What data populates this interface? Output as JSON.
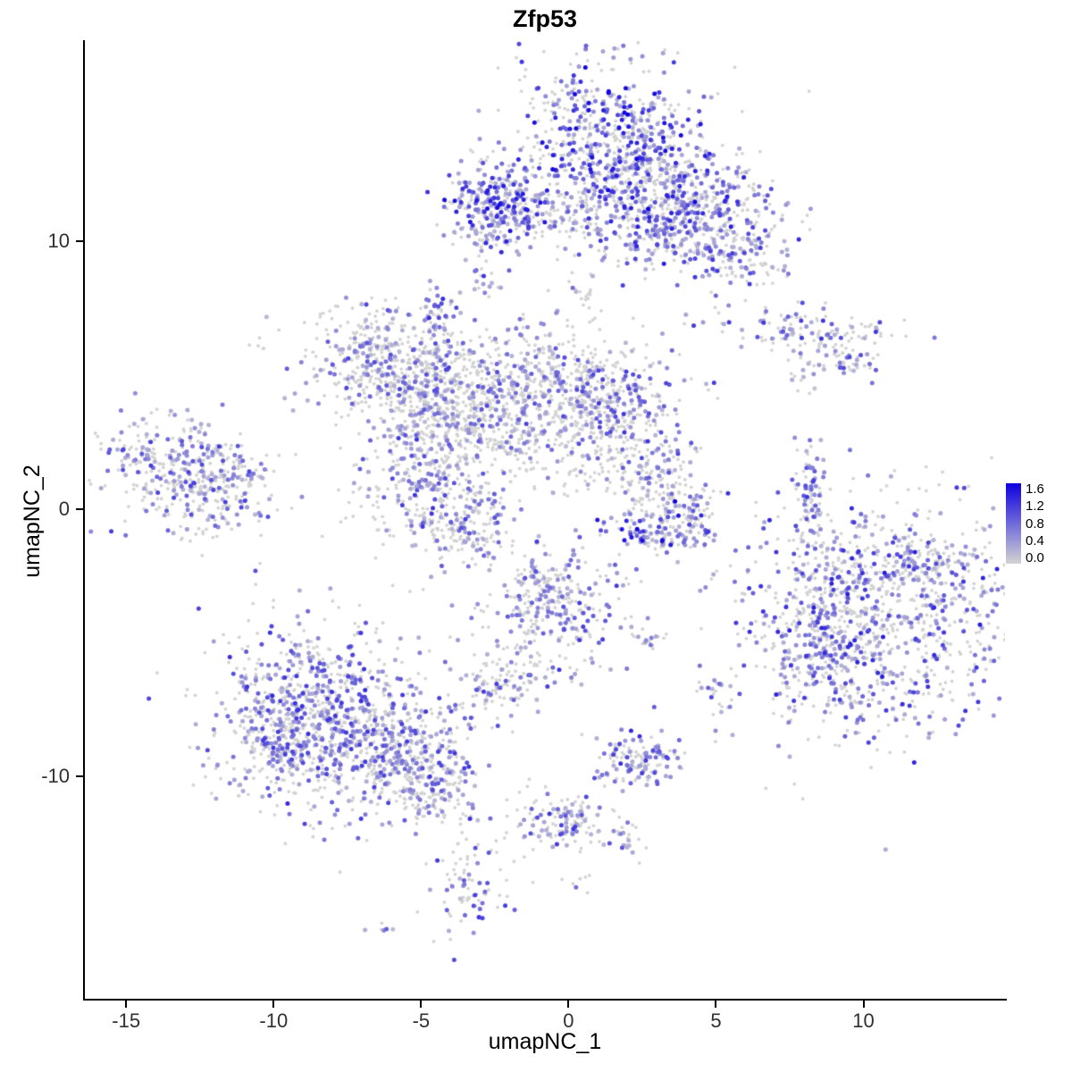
{
  "title": "Zfp53",
  "axes": {
    "xlabel": "umapNC_1",
    "ylabel": "umapNC_2",
    "x_ticks": [
      -15,
      -10,
      -5,
      0,
      5,
      10
    ],
    "y_ticks": [
      -10,
      0,
      10
    ]
  },
  "legend": {
    "labels": [
      "1.6",
      "1.2",
      "0.8",
      "0.4",
      "0.0"
    ],
    "vmin": 0.0,
    "vmax": 1.6,
    "min_color": "#D3D3D3",
    "max_color": "#0D00E0"
  },
  "style": {
    "background": "#FFFFFF",
    "axis_color": "#000000",
    "zero_point_color": "#D3D3D3"
  },
  "chart_data": {
    "type": "scatter",
    "title": "Zfp53",
    "xlabel": "umapNC_1",
    "ylabel": "umapNC_2",
    "xlim": [
      -16.4,
      14.8
    ],
    "ylim": [
      -18.3,
      17.5
    ],
    "grid": false,
    "legend_position": "right",
    "color_scale": {
      "vmin": 0.0,
      "vmax": 1.6,
      "low": "#D3D3D3",
      "high": "#0D00E0"
    },
    "seed": 42,
    "clusters": [
      {
        "name": "top-main-a",
        "cx": 1.3,
        "cy": 14.0,
        "sx": 1.6,
        "sy": 1.5,
        "n": 500,
        "frac": 0.55,
        "vmax": 1.6
      },
      {
        "name": "top-main-b",
        "cx": 2.5,
        "cy": 12.0,
        "sx": 1.5,
        "sy": 1.4,
        "n": 420,
        "frac": 0.45,
        "vmax": 1.4
      },
      {
        "name": "top-arm-right",
        "cx": 4.6,
        "cy": 11.3,
        "sx": 1.3,
        "sy": 0.8,
        "n": 260,
        "frac": 0.5,
        "vmax": 1.3
      },
      {
        "name": "top-arm-tip",
        "cx": 5.6,
        "cy": 9.6,
        "sx": 0.9,
        "sy": 0.7,
        "n": 150,
        "frac": 0.45,
        "vmax": 1.2
      },
      {
        "name": "top-left-blob",
        "cx": -2.5,
        "cy": 11.4,
        "sx": 0.75,
        "sy": 0.85,
        "n": 280,
        "frac": 0.6,
        "vmax": 1.5
      },
      {
        "name": "top-bridge",
        "cx": -0.6,
        "cy": 10.9,
        "sx": 1.2,
        "sy": 0.5,
        "n": 120,
        "frac": 0.35,
        "vmax": 1.0
      },
      {
        "name": "top-clump",
        "cx": 3.2,
        "cy": 10.1,
        "sx": 0.45,
        "sy": 0.45,
        "n": 70,
        "frac": 0.5,
        "vmax": 1.2
      },
      {
        "name": "top-spur-down",
        "cx": 0.6,
        "cy": 7.6,
        "sx": 0.35,
        "sy": 1.0,
        "n": 25,
        "frac": 0.2,
        "vmax": 0.8
      },
      {
        "name": "spot-upper-mid",
        "cx": -2.8,
        "cy": 8.6,
        "sx": 0.28,
        "sy": 0.38,
        "n": 20,
        "frac": 0.5,
        "vmax": 1.2
      },
      {
        "name": "right-stripe-1",
        "cx": 8.2,
        "cy": 6.7,
        "sx": 1.6,
        "sy": 0.38,
        "n": 120,
        "frac": 0.45,
        "vmax": 1.2
      },
      {
        "name": "right-stripe-2",
        "cx": 9.2,
        "cy": 5.6,
        "sx": 0.8,
        "sy": 0.3,
        "n": 60,
        "frac": 0.4,
        "vmax": 1.1
      },
      {
        "name": "right-stripe-dot",
        "cx": 7.8,
        "cy": 4.8,
        "sx": 0.25,
        "sy": 0.25,
        "n": 8,
        "frac": 0.25,
        "vmax": 0.6
      },
      {
        "name": "mid-a",
        "cx": -6.6,
        "cy": 5.6,
        "sx": 1.1,
        "sy": 1.0,
        "n": 300,
        "frac": 0.4,
        "vmax": 1.1
      },
      {
        "name": "mid-b",
        "cx": -5.0,
        "cy": 4.4,
        "sx": 1.2,
        "sy": 1.1,
        "n": 320,
        "frac": 0.3,
        "vmax": 1.0
      },
      {
        "name": "mid-c",
        "cx": -2.9,
        "cy": 3.6,
        "sx": 1.4,
        "sy": 1.2,
        "n": 380,
        "frac": 0.3,
        "vmax": 1.0
      },
      {
        "name": "mid-d",
        "cx": -0.5,
        "cy": 4.8,
        "sx": 1.4,
        "sy": 1.2,
        "n": 350,
        "frac": 0.4,
        "vmax": 1.1
      },
      {
        "name": "mid-e",
        "cx": 1.7,
        "cy": 3.9,
        "sx": 1.2,
        "sy": 1.0,
        "n": 300,
        "frac": 0.4,
        "vmax": 1.2
      },
      {
        "name": "mid-spur-up",
        "cx": -4.5,
        "cy": 6.9,
        "sx": 0.28,
        "sy": 0.85,
        "n": 60,
        "frac": 0.6,
        "vmax": 1.3
      },
      {
        "name": "mid-lower",
        "cx": -4.6,
        "cy": 0.8,
        "sx": 1.25,
        "sy": 1.3,
        "n": 330,
        "frac": 0.4,
        "vmax": 1.2
      },
      {
        "name": "mid-lower-tail",
        "cx": -3.3,
        "cy": -0.8,
        "sx": 0.8,
        "sy": 0.7,
        "n": 120,
        "frac": 0.4,
        "vmax": 1.1
      },
      {
        "name": "mid-bridge",
        "cx": -1.2,
        "cy": 2.4,
        "sx": 1.5,
        "sy": 0.45,
        "n": 80,
        "frac": 0.2,
        "vmax": 0.8
      },
      {
        "name": "mid-strand-right",
        "cx": 0.8,
        "cy": 1.2,
        "sx": 1.2,
        "sy": 0.4,
        "n": 40,
        "frac": 0.15,
        "vmax": 0.7
      },
      {
        "name": "far-left-a",
        "cx": -13.4,
        "cy": 1.6,
        "sx": 1.3,
        "sy": 1.0,
        "n": 260,
        "frac": 0.45,
        "vmax": 1.2
      },
      {
        "name": "far-left-b",
        "cx": -12.1,
        "cy": 0.4,
        "sx": 1.0,
        "sy": 0.8,
        "n": 150,
        "frac": 0.4,
        "vmax": 1.1
      },
      {
        "name": "far-left-spur",
        "cx": -11.2,
        "cy": 1.6,
        "sx": 0.5,
        "sy": 0.4,
        "n": 40,
        "frac": 0.3,
        "vmax": 0.9
      },
      {
        "name": "center-right-a",
        "cx": 3.0,
        "cy": 0.9,
        "sx": 0.8,
        "sy": 1.0,
        "n": 160,
        "frac": 0.35,
        "vmax": 1.0
      },
      {
        "name": "center-right-arc",
        "cx": 3.1,
        "cy": -0.8,
        "sx": 1.05,
        "sy": 0.4,
        "n": 110,
        "frac": 0.7,
        "vmax": 1.6
      },
      {
        "name": "center-right-b",
        "cx": 4.2,
        "cy": 0.1,
        "sx": 0.4,
        "sy": 0.55,
        "n": 50,
        "frac": 0.4,
        "vmax": 1.2
      },
      {
        "name": "right-strip-vertical",
        "cx": 8.2,
        "cy": 0.5,
        "sx": 0.28,
        "sy": 1.25,
        "n": 90,
        "frac": 0.5,
        "vmax": 1.2
      },
      {
        "name": "big-right-a",
        "cx": 10.7,
        "cy": -4.3,
        "sx": 2.4,
        "sy": 2.2,
        "n": 900,
        "frac": 0.45,
        "vmax": 1.4
      },
      {
        "name": "big-right-b",
        "cx": 8.7,
        "cy": -5.0,
        "sx": 1.0,
        "sy": 1.4,
        "n": 220,
        "frac": 0.5,
        "vmax": 1.3
      },
      {
        "name": "big-right-top",
        "cx": 11.3,
        "cy": -2.1,
        "sx": 1.5,
        "sy": 0.6,
        "n": 160,
        "frac": 0.35,
        "vmax": 1.1
      },
      {
        "name": "center-bottom-a",
        "cx": -0.5,
        "cy": -4.0,
        "sx": 1.25,
        "sy": 1.2,
        "n": 280,
        "frac": 0.45,
        "vmax": 1.2
      },
      {
        "name": "center-bottom-spur",
        "cx": -1.1,
        "cy": -2.7,
        "sx": 0.4,
        "sy": 0.5,
        "n": 50,
        "frac": 0.4,
        "vmax": 1.0
      },
      {
        "name": "center-bottom-strand",
        "cx": -1.9,
        "cy": -5.9,
        "sx": 0.45,
        "sy": 0.5,
        "n": 30,
        "frac": 0.25,
        "vmax": 0.8
      },
      {
        "name": "center-bottom-blob",
        "cx": -2.6,
        "cy": -6.7,
        "sx": 0.55,
        "sy": 0.5,
        "n": 70,
        "frac": 0.3,
        "vmax": 1.0
      },
      {
        "name": "small-dots-mid",
        "cx": 2.8,
        "cy": -4.8,
        "sx": 0.4,
        "sy": 0.25,
        "n": 18,
        "frac": 0.5,
        "vmax": 1.1
      },
      {
        "name": "small-dot-right",
        "cx": 5.1,
        "cy": -7.0,
        "sx": 0.35,
        "sy": 0.35,
        "n": 20,
        "frac": 0.5,
        "vmax": 1.1
      },
      {
        "name": "bottom-left-a",
        "cx": -8.5,
        "cy": -7.3,
        "sx": 1.8,
        "sy": 1.7,
        "n": 650,
        "frac": 0.5,
        "vmax": 1.3
      },
      {
        "name": "bottom-left-b",
        "cx": -6.6,
        "cy": -9.0,
        "sx": 1.6,
        "sy": 1.2,
        "n": 420,
        "frac": 0.45,
        "vmax": 1.2
      },
      {
        "name": "bottom-left-c",
        "cx": -4.8,
        "cy": -9.8,
        "sx": 0.9,
        "sy": 0.7,
        "n": 160,
        "frac": 0.4,
        "vmax": 1.2
      },
      {
        "name": "bottom-left-d",
        "cx": -9.9,
        "cy": -8.7,
        "sx": 0.8,
        "sy": 1.0,
        "n": 150,
        "frac": 0.45,
        "vmax": 1.2
      },
      {
        "name": "bottom-left-tail",
        "cx": -5.0,
        "cy": -10.9,
        "sx": 0.5,
        "sy": 0.5,
        "n": 40,
        "frac": 0.3,
        "vmax": 0.9
      },
      {
        "name": "bottom-small-a",
        "cx": 2.3,
        "cy": -9.3,
        "sx": 0.8,
        "sy": 0.45,
        "n": 130,
        "frac": 0.6,
        "vmax": 1.3
      },
      {
        "name": "bottom-strand",
        "cx": -3.6,
        "cy": -11.6,
        "sx": 0.3,
        "sy": 1.0,
        "n": 25,
        "frac": 0.3,
        "vmax": 0.9
      },
      {
        "name": "bottom-small-b",
        "cx": -0.3,
        "cy": -11.6,
        "sx": 0.85,
        "sy": 0.7,
        "n": 120,
        "frac": 0.5,
        "vmax": 1.2
      },
      {
        "name": "bottom-small-c",
        "cx": 1.9,
        "cy": -12.2,
        "sx": 0.45,
        "sy": 0.3,
        "n": 25,
        "frac": 0.4,
        "vmax": 1.0
      },
      {
        "name": "bottom-bridge",
        "cx": -1.6,
        "cy": -12.9,
        "sx": 0.6,
        "sy": 0.7,
        "n": 15,
        "frac": 0.15,
        "vmax": 0.6
      },
      {
        "name": "bottom-blob",
        "cx": -3.5,
        "cy": -14.3,
        "sx": 0.55,
        "sy": 0.9,
        "n": 70,
        "frac": 0.45,
        "vmax": 1.2
      },
      {
        "name": "bottom-dot-a",
        "cx": 0.4,
        "cy": -13.8,
        "sx": 0.25,
        "sy": 0.25,
        "n": 7,
        "frac": 0.3,
        "vmax": 0.8
      },
      {
        "name": "bottom-dot-b",
        "cx": -6.2,
        "cy": -15.7,
        "sx": 0.25,
        "sy": 0.2,
        "n": 6,
        "frac": 0.35,
        "vmax": 0.9
      },
      {
        "name": "nw-dots",
        "cx": -10.5,
        "cy": 6.2,
        "sx": 0.25,
        "sy": 0.2,
        "n": 5,
        "frac": 0.1,
        "vmax": 0.4
      }
    ]
  }
}
